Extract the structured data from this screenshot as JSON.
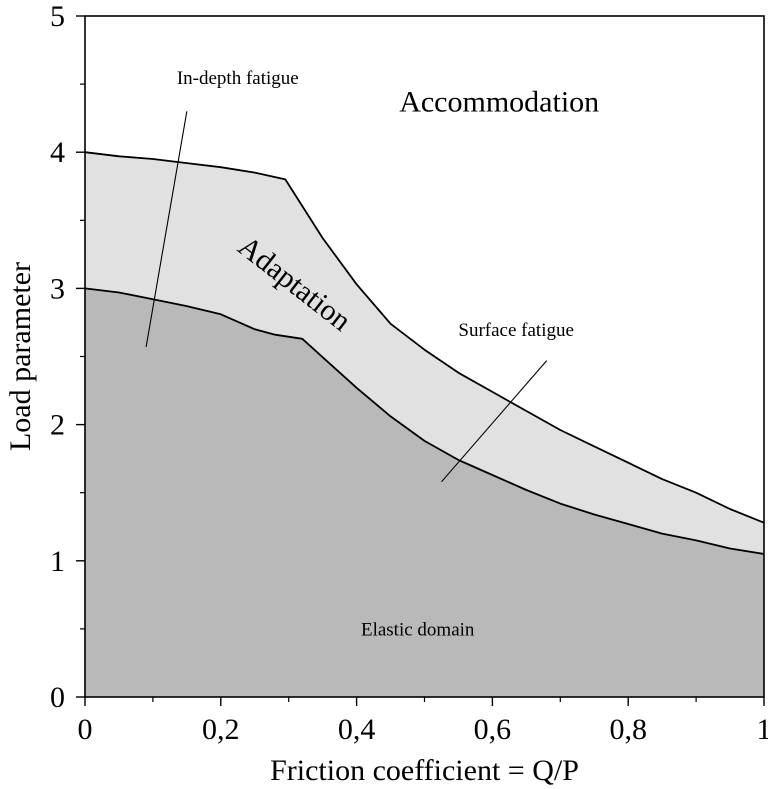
{
  "chart_data": {
    "type": "area",
    "title": "",
    "xlabel": "Friction coefficient = Q/P",
    "ylabel": "Load parameter",
    "xlim": [
      0,
      1
    ],
    "ylim": [
      0,
      5
    ],
    "x_ticks": [
      0,
      0.2,
      0.4,
      0.6,
      0.8,
      1
    ],
    "x_tick_labels": [
      "0",
      "0,2",
      "0,4",
      "0,6",
      "0,8",
      "1"
    ],
    "y_ticks": [
      0,
      1,
      2,
      3,
      4,
      5
    ],
    "y_tick_labels": [
      "0",
      "1",
      "2",
      "3",
      "4",
      "5"
    ],
    "grid": false,
    "colors": {
      "elastic": "#b9b9b9",
      "adaptation": "#e1e1e1",
      "accommodation": "#ffffff",
      "line": "#000000"
    },
    "series": [
      {
        "points": [
          [
            0,
            3.0
          ],
          [
            0.05,
            2.97
          ],
          [
            0.1,
            2.92
          ],
          [
            0.15,
            2.87
          ],
          [
            0.2,
            2.81
          ],
          [
            0.25,
            2.7
          ],
          [
            0.28,
            2.66
          ],
          [
            0.32,
            2.63
          ],
          [
            0.36,
            2.45
          ],
          [
            0.4,
            2.27
          ],
          [
            0.45,
            2.06
          ],
          [
            0.5,
            1.88
          ],
          [
            0.55,
            1.74
          ],
          [
            0.6,
            1.63
          ],
          [
            0.65,
            1.52
          ],
          [
            0.7,
            1.42
          ],
          [
            0.75,
            1.34
          ],
          [
            0.8,
            1.27
          ],
          [
            0.85,
            1.2
          ],
          [
            0.9,
            1.15
          ],
          [
            0.95,
            1.09
          ],
          [
            1.0,
            1.05
          ]
        ]
      },
      {
        "points": [
          [
            0,
            4.0
          ],
          [
            0.05,
            3.97
          ],
          [
            0.1,
            3.95
          ],
          [
            0.15,
            3.92
          ],
          [
            0.2,
            3.89
          ],
          [
            0.25,
            3.85
          ],
          [
            0.295,
            3.8
          ],
          [
            0.35,
            3.37
          ],
          [
            0.4,
            3.03
          ],
          [
            0.45,
            2.74
          ],
          [
            0.5,
            2.55
          ],
          [
            0.55,
            2.38
          ],
          [
            0.6,
            2.24
          ],
          [
            0.65,
            2.1
          ],
          [
            0.7,
            1.96
          ],
          [
            0.75,
            1.84
          ],
          [
            0.8,
            1.72
          ],
          [
            0.85,
            1.6
          ],
          [
            0.9,
            1.5
          ],
          [
            0.95,
            1.38
          ],
          [
            1.0,
            1.28
          ]
        ]
      }
    ],
    "annotations": [
      {
        "text": "Accommodation",
        "x": 0.61,
        "y": 4.3,
        "rotation": 0,
        "size": "large"
      },
      {
        "text": "Adaptation",
        "x": 0.3,
        "y": 2.98,
        "rotation": 38,
        "size": "large"
      },
      {
        "text": "Elastic domain",
        "x": 0.49,
        "y": 0.45,
        "rotation": 0,
        "size": "small"
      },
      {
        "text": "In-depth fatigue",
        "x": 0.225,
        "y": 4.5,
        "rotation": 0,
        "size": "small",
        "line_from": [
          0.15,
          4.3
        ],
        "line_to": [
          0.09,
          2.57
        ]
      },
      {
        "text": "Surface fatigue",
        "x": 0.635,
        "y": 2.65,
        "rotation": 0,
        "size": "small",
        "line_from": [
          0.68,
          2.47
        ],
        "line_to": [
          0.525,
          1.58
        ]
      }
    ]
  }
}
